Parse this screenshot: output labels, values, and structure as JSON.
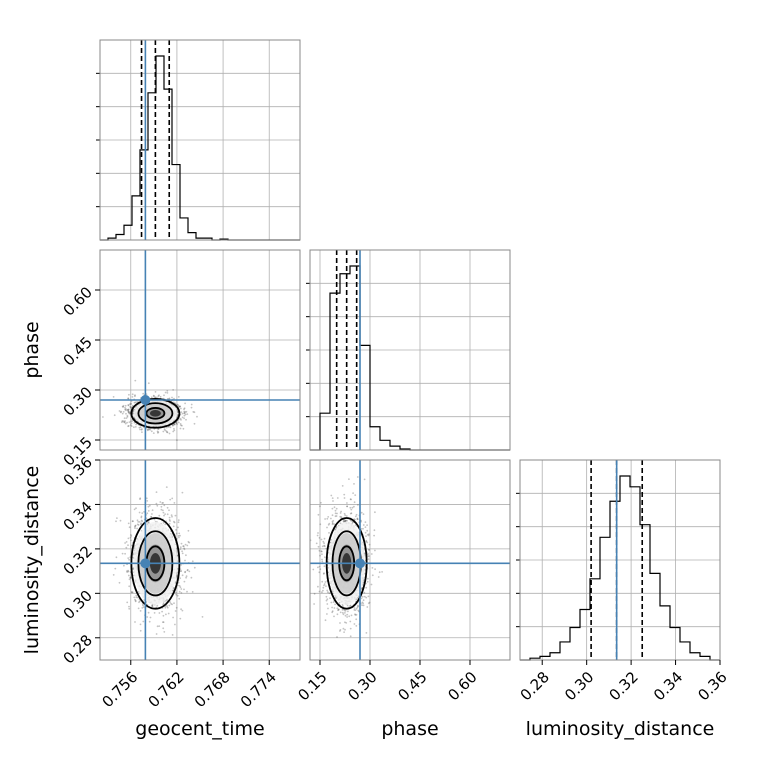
{
  "chart_data": {
    "type": "corner",
    "parameters": [
      {
        "name": "geocent_time",
        "label": "geocent_time",
        "range": [
          0.752,
          0.778
        ],
        "ticks": [
          0.756,
          0.762,
          0.768,
          0.774
        ],
        "tick_labels": [
          "0.756",
          "0.762",
          "0.768",
          "0.774"
        ],
        "truth": 0.7579,
        "quantiles": [
          0.7574,
          0.7592,
          0.761
        ]
      },
      {
        "name": "phase",
        "label": "phase",
        "range": [
          0.12,
          0.72
        ],
        "ticks": [
          0.15,
          0.3,
          0.45,
          0.6
        ],
        "tick_labels": [
          "0.15",
          "0.30",
          "0.45",
          "0.60"
        ],
        "truth": 0.27,
        "quantiles": [
          0.2,
          0.23,
          0.26
        ]
      },
      {
        "name": "luminosity_distance",
        "label": "luminosity_distance",
        "range": [
          0.27,
          0.36
        ],
        "ticks": [
          0.28,
          0.3,
          0.32,
          0.34,
          0.36
        ],
        "tick_labels": [
          "0.28",
          "0.30",
          "0.32",
          "0.34",
          "0.36"
        ],
        "truth": 0.3135,
        "quantiles": [
          0.302,
          0.3135,
          0.325
        ]
      }
    ],
    "histograms": {
      "geocent_time": [
        0,
        1,
        3,
        8,
        24,
        49,
        80,
        100,
        82,
        41,
        12,
        4,
        1,
        1,
        0,
        0.5,
        0,
        0,
        0,
        0,
        0,
        0,
        0,
        0,
        0
      ],
      "phase": [
        0,
        19,
        81,
        91,
        95,
        54,
        12,
        5,
        2,
        0.5,
        0,
        0,
        0,
        0,
        0,
        0,
        0,
        0,
        0,
        0
      ],
      "luminosity_distance": [
        0,
        1,
        2,
        4,
        10,
        18,
        28,
        45,
        68,
        88,
        102,
        96,
        75,
        48,
        30,
        18,
        10,
        4,
        2,
        0
      ]
    },
    "scatter_2d": [
      {
        "x": "geocent_time",
        "y": "phase",
        "center": [
          0.7592,
          0.23
        ],
        "spread": [
          0.0013,
          0.018
        ]
      },
      {
        "x": "geocent_time",
        "y": "luminosity_distance",
        "center": [
          0.7592,
          0.3135
        ],
        "spread": [
          0.0013,
          0.0085
        ]
      },
      {
        "x": "phase",
        "y": "luminosity_distance",
        "center": [
          0.23,
          0.3135
        ],
        "spread": [
          0.025,
          0.0085
        ]
      }
    ],
    "grid": true,
    "truth_color": "#4682b4",
    "line_color": "#000000"
  }
}
